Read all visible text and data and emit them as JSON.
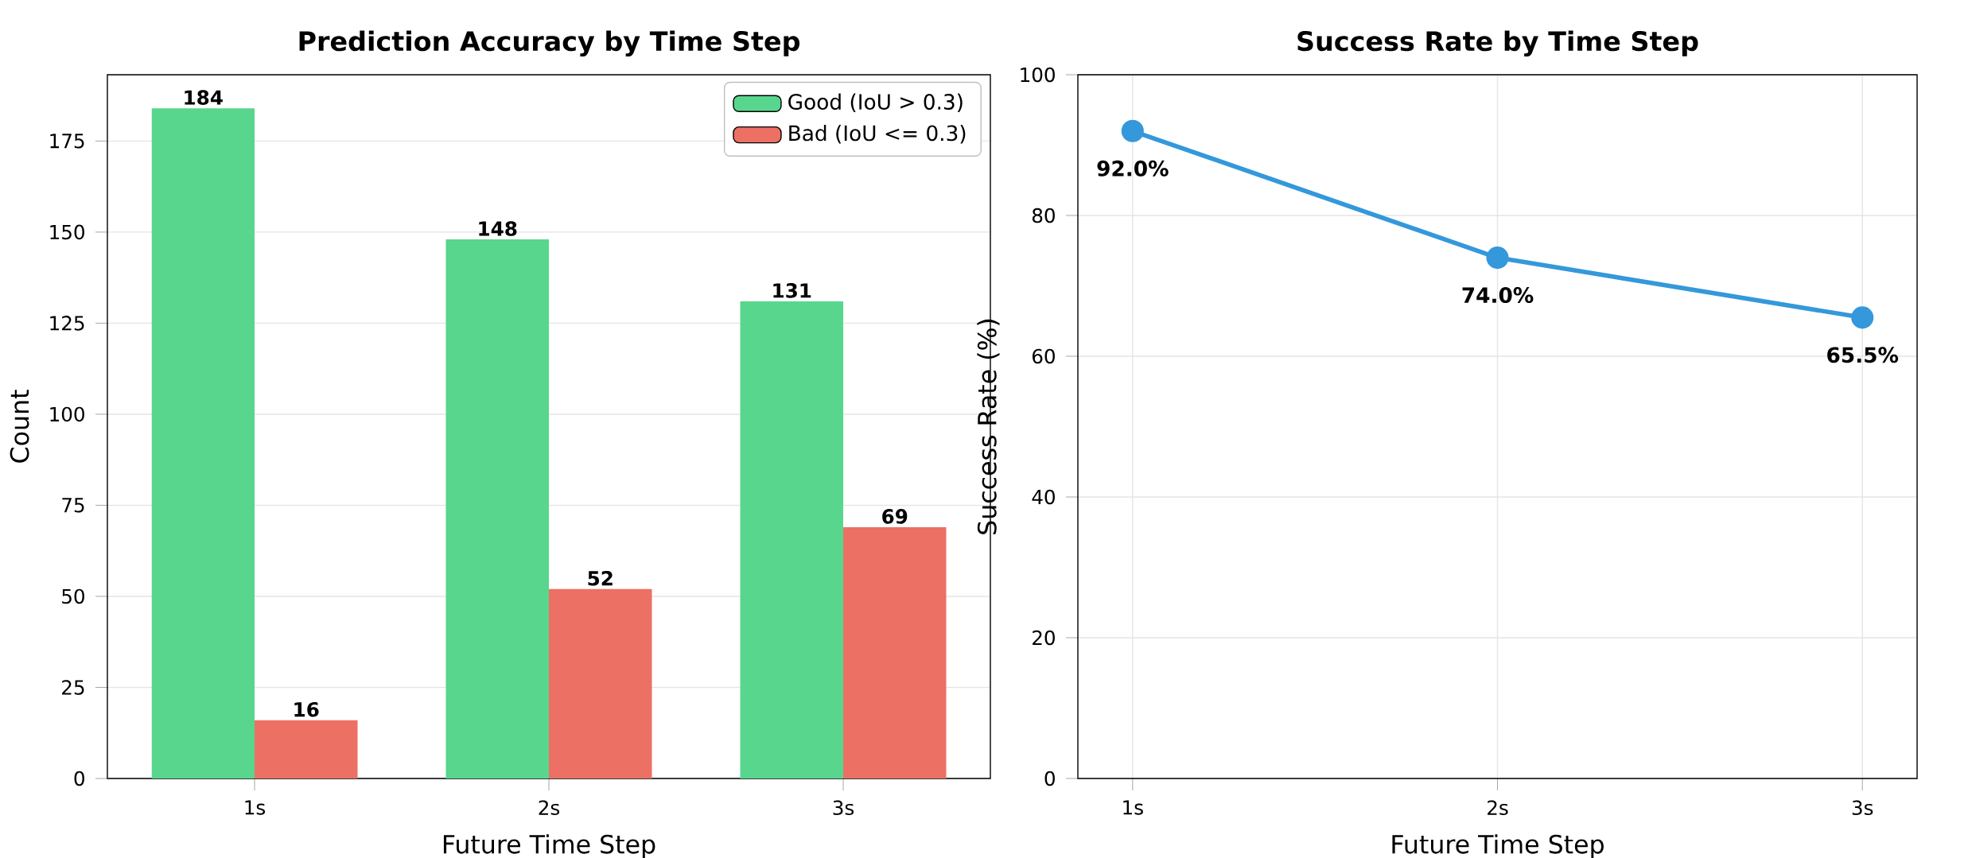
{
  "chart_data": [
    {
      "type": "bar",
      "title": "Prediction Accuracy by Time Step",
      "xlabel": "Future Time Step",
      "ylabel": "Count",
      "categories": [
        "1s",
        "2s",
        "3s"
      ],
      "series": [
        {
          "name": "Good (IoU > 0.3)",
          "color": "#58d68d",
          "values": [
            184,
            148,
            131
          ]
        },
        {
          "name": "Bad (IoU <= 0.3)",
          "color": "#ec7063",
          "values": [
            16,
            52,
            69
          ]
        }
      ],
      "ylim": [
        0,
        193.2
      ],
      "yticks": [
        0,
        25,
        50,
        75,
        100,
        125,
        150,
        175
      ],
      "grid": "y",
      "legend": "top right",
      "data_labels": true
    },
    {
      "type": "line",
      "title": "Success Rate by Time Step",
      "xlabel": "Future Time Step",
      "ylabel": "Success Rate (%)",
      "categories": [
        "1s",
        "2s",
        "3s"
      ],
      "series": [
        {
          "color": "#3498db",
          "values": [
            92.0,
            74.0,
            65.5
          ],
          "value_labels": [
            "92.0%",
            "74.0%",
            "65.5%"
          ]
        }
      ],
      "ylim": [
        0,
        100
      ],
      "yticks": [
        0,
        20,
        40,
        60,
        80,
        100
      ],
      "grid": true,
      "marker": "circle",
      "line_style": "solid"
    }
  ]
}
